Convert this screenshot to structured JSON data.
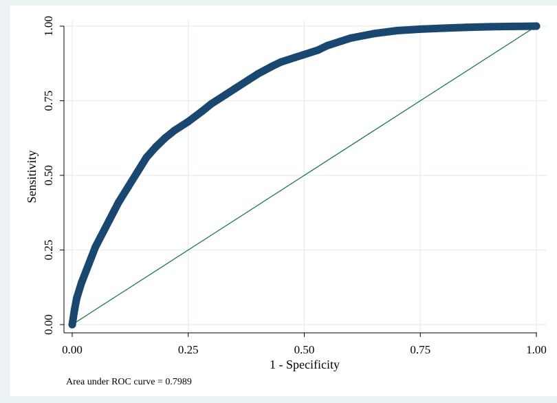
{
  "chart_data": {
    "type": "line",
    "xlabel": "1 - Specificity",
    "ylabel": "Sensitivity",
    "xlim": [
      0,
      1
    ],
    "ylim": [
      0,
      1
    ],
    "xticks": [
      "0.00",
      "0.25",
      "0.50",
      "0.75",
      "1.00"
    ],
    "yticks": [
      "0.00",
      "0.25",
      "0.50",
      "0.75",
      "1.00"
    ],
    "xtick_values": [
      0,
      0.25,
      0.5,
      0.75,
      1
    ],
    "ytick_values": [
      0,
      0.25,
      0.5,
      0.75,
      1
    ],
    "grid": true,
    "note": "Area under ROC curve = 0.7989",
    "series": [
      {
        "color": "#1a476f",
        "style": "markers+line",
        "x": [
          0.0,
          0.005,
          0.01,
          0.02,
          0.03,
          0.04,
          0.05,
          0.06,
          0.07,
          0.08,
          0.09,
          0.1,
          0.12,
          0.14,
          0.16,
          0.18,
          0.2,
          0.22,
          0.25,
          0.28,
          0.3,
          0.33,
          0.35,
          0.38,
          0.4,
          0.43,
          0.45,
          0.48,
          0.5,
          0.53,
          0.55,
          0.58,
          0.6,
          0.65,
          0.7,
          0.75,
          0.8,
          0.85,
          0.9,
          0.95,
          1.0
        ],
        "y": [
          0.0,
          0.05,
          0.09,
          0.14,
          0.18,
          0.22,
          0.26,
          0.29,
          0.32,
          0.35,
          0.38,
          0.41,
          0.46,
          0.51,
          0.56,
          0.595,
          0.625,
          0.65,
          0.68,
          0.715,
          0.74,
          0.77,
          0.79,
          0.82,
          0.84,
          0.865,
          0.88,
          0.895,
          0.905,
          0.92,
          0.935,
          0.95,
          0.96,
          0.975,
          0.985,
          0.99,
          0.993,
          0.996,
          0.998,
          0.999,
          1.0
        ]
      },
      {
        "color": "#2e7d5b",
        "style": "line",
        "x": [
          0,
          1
        ],
        "y": [
          0,
          1
        ]
      }
    ]
  },
  "colors": {
    "background": "#eaf2f3",
    "plot_area": "#ffffff",
    "grid": "#e4eef0",
    "roc_curve": "#1a476f",
    "reference_line": "#2e7d5b"
  }
}
